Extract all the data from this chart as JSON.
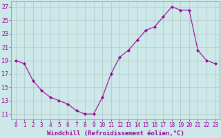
{
  "x": [
    0,
    1,
    2,
    3,
    4,
    5,
    6,
    7,
    8,
    9,
    10,
    11,
    12,
    13,
    14,
    15,
    16,
    17,
    18,
    19,
    20,
    21,
    22,
    23
  ],
  "y": [
    19,
    18.5,
    16,
    14.5,
    13.5,
    13,
    12.5,
    11.5,
    11,
    11,
    13.5,
    17,
    19.5,
    20.5,
    22,
    23.5,
    24.0,
    25.5,
    27,
    26.5,
    26.5,
    20.5,
    19,
    18.5
  ],
  "line_color": "#990099",
  "marker": "D",
  "marker_size": 2,
  "bg_color": "#cce8e8",
  "grid_color": "#aabbbb",
  "xlabel": "Windchill (Refroidissement éolien,°C)",
  "ylabel_ticks": [
    11,
    13,
    15,
    17,
    19,
    21,
    23,
    25,
    27
  ],
  "xtick_labels": [
    "0",
    "1",
    "2",
    "3",
    "4",
    "5",
    "6",
    "7",
    "8",
    "9",
    "10",
    "11",
    "12",
    "13",
    "14",
    "15",
    "16",
    "17",
    "18",
    "19",
    "20",
    "21",
    "22",
    "23"
  ],
  "ylim": [
    10.2,
    27.8
  ],
  "xlim": [
    -0.5,
    23.5
  ],
  "font_color": "#990099",
  "font_size": 6,
  "label_font_size": 6.5
}
